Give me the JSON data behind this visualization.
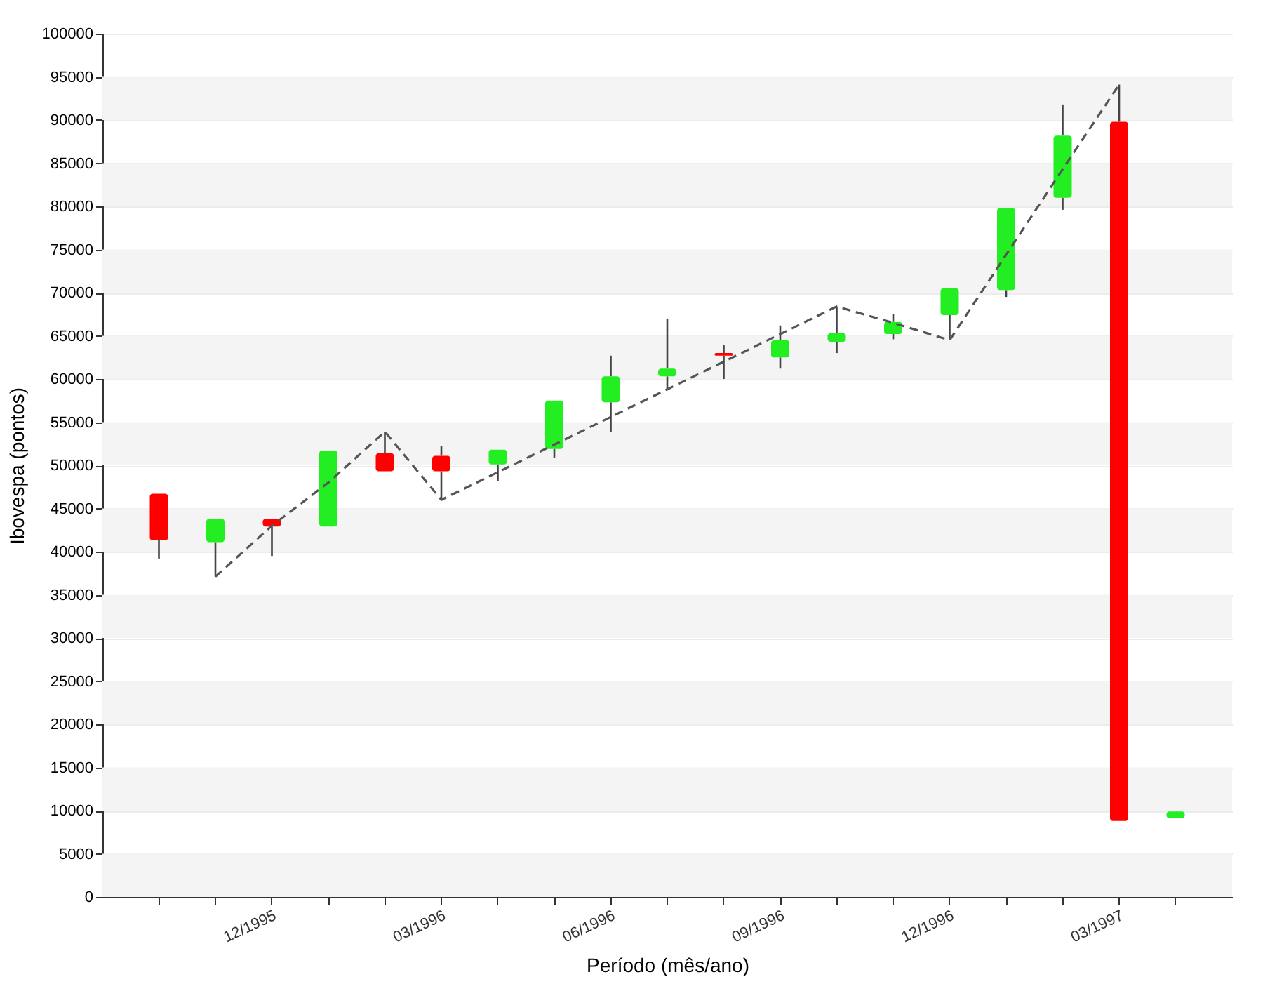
{
  "chart_data": {
    "type": "candlestick",
    "xlabel": "Período (mês/ano)",
    "ylabel": "Ibovespa (pontos)",
    "categories": [
      null,
      null,
      "12/1995",
      null,
      null,
      "03/1996",
      null,
      null,
      "06/1996",
      null,
      null,
      "09/1996",
      null,
      null,
      "12/1996",
      null,
      null,
      "03/1997",
      null
    ],
    "ohlc": [
      [
        46700,
        46700,
        39200,
        41300
      ],
      [
        41100,
        43800,
        37100,
        43800
      ],
      [
        43800,
        43800,
        39500,
        42900
      ],
      [
        42900,
        51700,
        42900,
        51700
      ],
      [
        51400,
        53900,
        49300,
        49300
      ],
      [
        51100,
        52200,
        46000,
        49300
      ],
      [
        50100,
        51800,
        48200,
        51800
      ],
      [
        51900,
        57500,
        50900,
        57500
      ],
      [
        57300,
        62700,
        53900,
        60300
      ],
      [
        60300,
        67000,
        58800,
        61200
      ],
      [
        63000,
        63900,
        60000,
        62700
      ],
      [
        62500,
        66200,
        61200,
        64500
      ],
      [
        64300,
        68400,
        63000,
        65300
      ],
      [
        65200,
        67500,
        64600,
        66600
      ],
      [
        67400,
        70500,
        64500,
        70500
      ],
      [
        70300,
        79800,
        69500,
        79800
      ],
      [
        81000,
        91800,
        79600,
        88200
      ],
      [
        89800,
        94100,
        8800,
        8800
      ],
      [
        9100,
        9900,
        9100,
        9900
      ]
    ],
    "colors": [
      "#ff0000",
      "#22ee22",
      "#ff0000",
      "#22ee22",
      "#ff0000",
      "#ff0000",
      "#22ee22",
      "#22ee22",
      "#22ee22",
      "#22ee22",
      "#ff0000",
      "#22ee22",
      "#22ee22",
      "#22ee22",
      "#22ee22",
      "#22ee22",
      "#22ee22",
      "#ff0000",
      "#22ee22"
    ],
    "series": [
      {
        "type": "line",
        "color": "#555555",
        "line_style": "dashed",
        "values": [
          null,
          37100,
          43000,
          48000,
          53900,
          46000,
          49200,
          52400,
          55600,
          58800,
          62000,
          65200,
          68400,
          66500,
          64500,
          74400,
          84300,
          94100,
          null
        ]
      }
    ],
    "ylim": [
      0,
      100000
    ],
    "yticks": [
      0,
      5000,
      10000,
      15000,
      20000,
      25000,
      30000,
      35000,
      40000,
      45000,
      50000,
      55000,
      60000,
      65000,
      70000,
      75000,
      80000,
      85000,
      90000,
      95000,
      100000
    ],
    "grid": "y"
  }
}
